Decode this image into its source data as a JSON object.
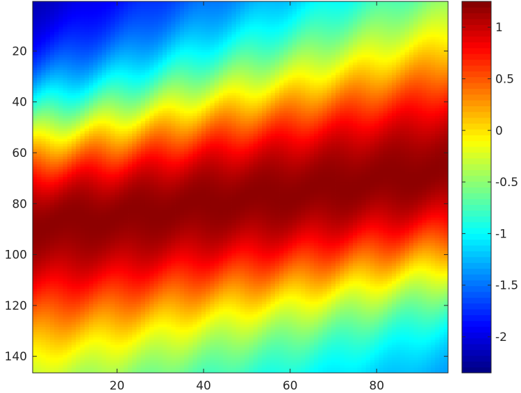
{
  "chart_data": {
    "type": "heatmap",
    "colormap": "jet",
    "x_range": [
      1,
      96
    ],
    "y_range": [
      1,
      146
    ],
    "y_direction": "reversed",
    "x_ticks": [
      20,
      40,
      60,
      80
    ],
    "y_ticks": [
      20,
      40,
      60,
      80,
      100,
      120,
      140
    ],
    "color_range": [
      -2.35,
      1.25
    ],
    "colorbar_ticks": [
      1,
      0.5,
      0,
      -0.5,
      -1,
      -1.5,
      -2
    ],
    "colorbar_tick_labels": [
      "1",
      "0.5",
      "0",
      "-0.5",
      "-1",
      "-1.5",
      "-2"
    ],
    "x_tick_labels": [
      "20",
      "40",
      "60",
      "80"
    ],
    "y_tick_labels": [
      "20",
      "40",
      "60",
      "80",
      "100",
      "120",
      "140"
    ],
    "ridge_center_profile": {
      "x": [
        1,
        20,
        40,
        60,
        80,
        96
      ],
      "y": [
        88,
        85,
        80,
        76,
        71,
        67
      ]
    },
    "ridge_peak_value": 1.2,
    "grid": false,
    "legend": "colorbar-right"
  }
}
